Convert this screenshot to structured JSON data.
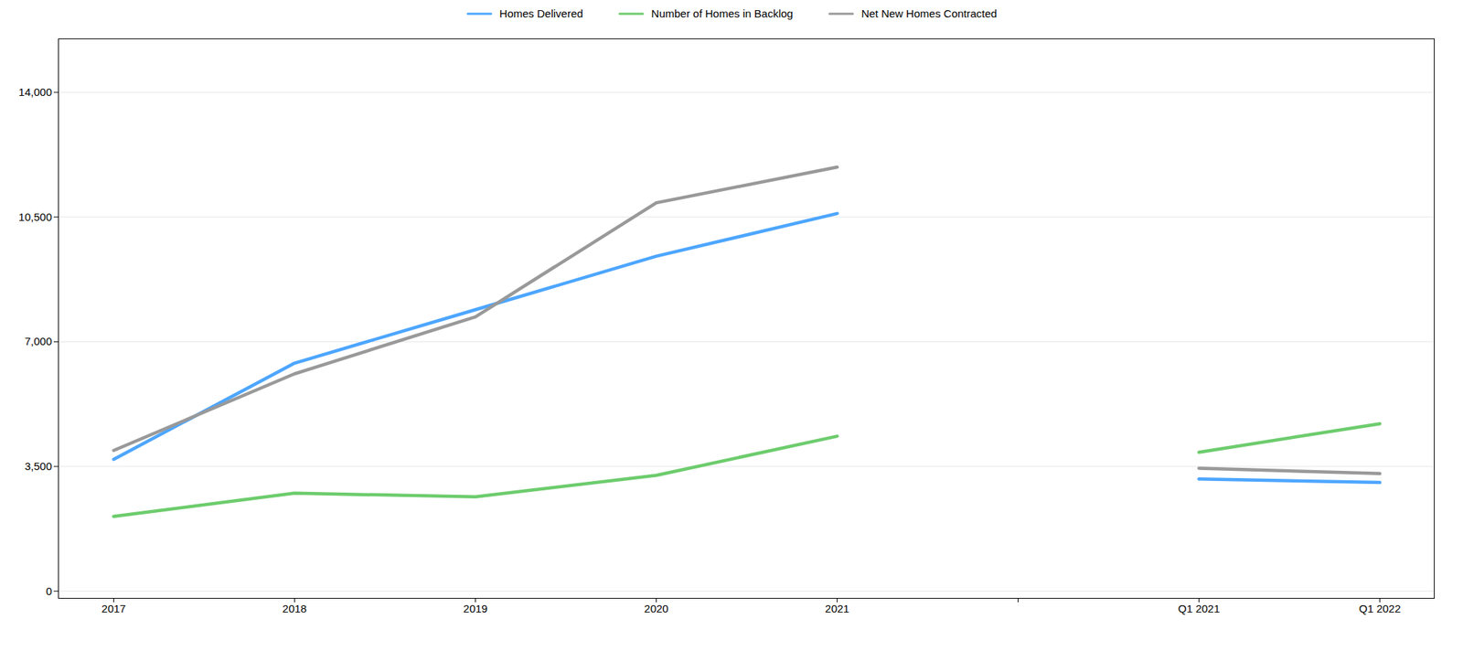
{
  "chart_data": {
    "type": "line",
    "categories": [
      "2017",
      "2018",
      "2019",
      "2020",
      "2021",
      null,
      "Q1 2021",
      "Q1 2022"
    ],
    "series": [
      {
        "name": "Homes Delivered",
        "color": "#4da6ff",
        "values": [
          3700,
          6400,
          7900,
          9400,
          10600,
          null,
          3150,
          3050
        ]
      },
      {
        "name": "Number of Homes in Backlog",
        "color": "#6dcc6d",
        "values": [
          2100,
          2750,
          2650,
          3250,
          4350,
          null,
          3900,
          4700
        ]
      },
      {
        "name": "Net New Homes Contracted",
        "color": "#999999",
        "values": [
          3950,
          6100,
          7700,
          10900,
          11900,
          null,
          3450,
          3300
        ]
      }
    ],
    "ylim": [
      -200,
      15500
    ],
    "yticks": [
      0,
      {
        "value": 3500,
        "label": "3,500"
      },
      {
        "value": 7000,
        "label": "7,000"
      },
      {
        "value": 10500,
        "label": "10,500"
      },
      {
        "value": 14000,
        "label": "14,000"
      }
    ],
    "grid": true,
    "legend": "top"
  }
}
